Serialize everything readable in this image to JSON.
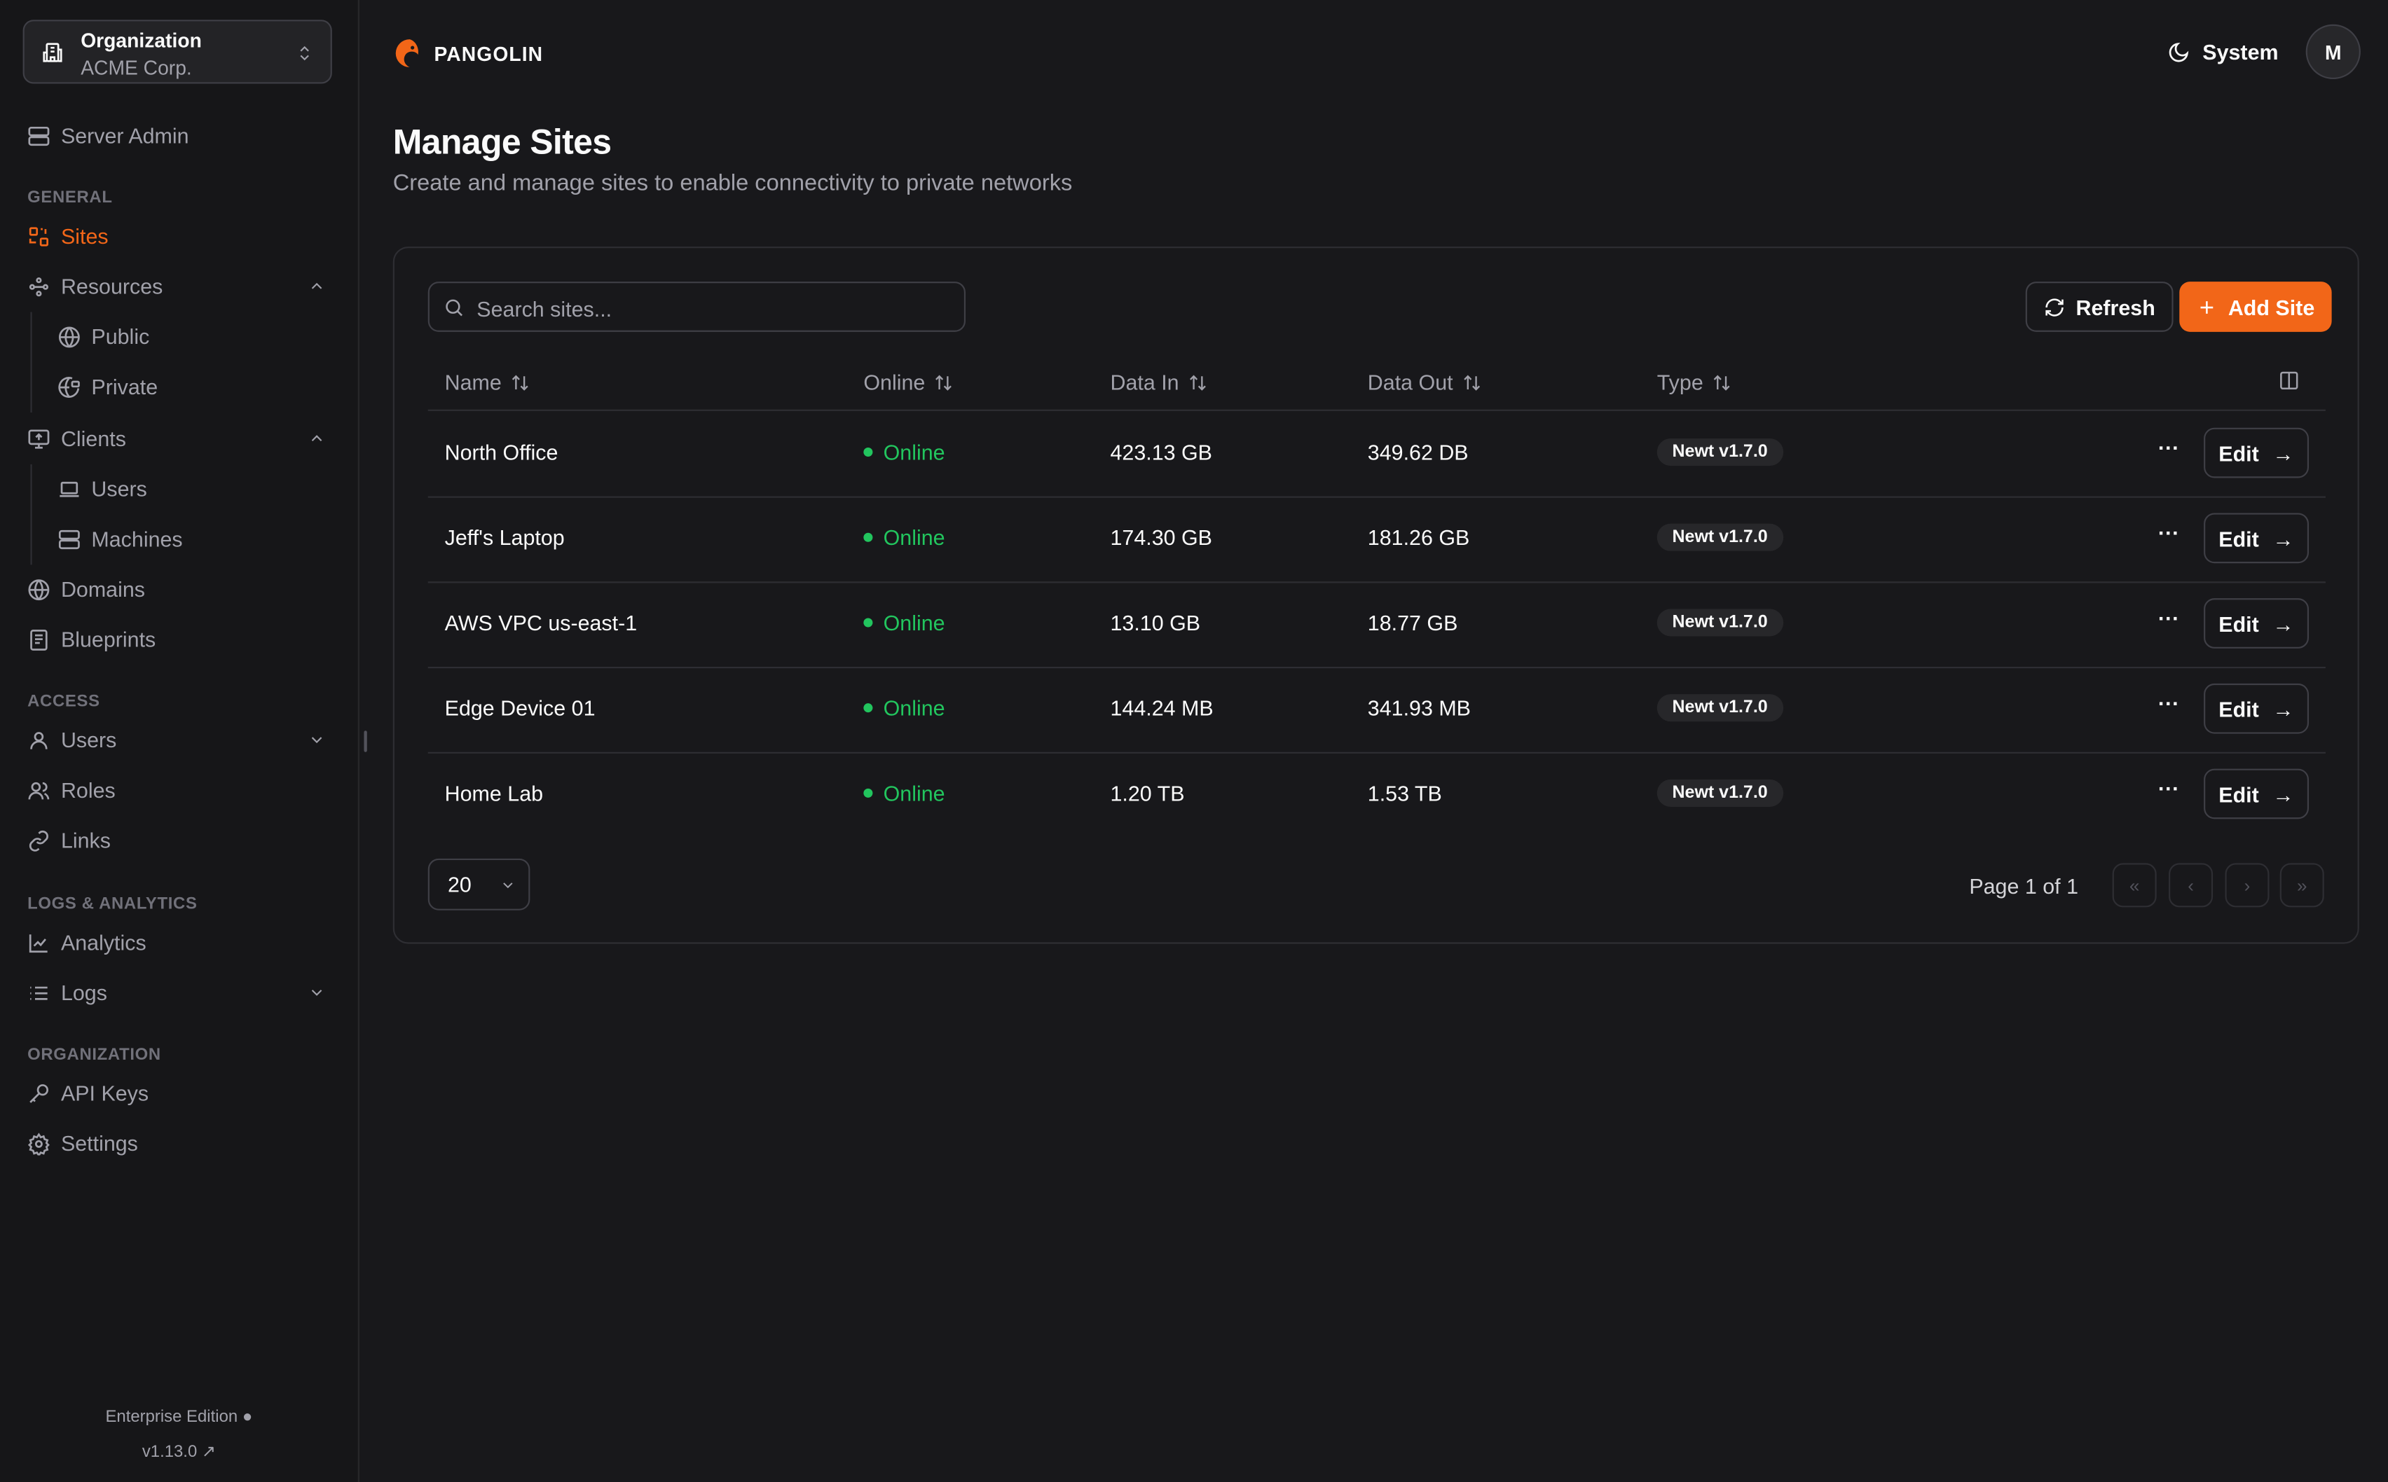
{
  "sidebar": {
    "org_label": "Organization",
    "org_name": "ACME Corp.",
    "server_admin": "Server Admin",
    "sections": {
      "general": "GENERAL",
      "access": "ACCESS",
      "logs": "LOGS & ANALYTICS",
      "organization": "ORGANIZATION"
    },
    "items": {
      "sites": "Sites",
      "resources": "Resources",
      "public": "Public",
      "private": "Private",
      "clients": "Clients",
      "users_client": "Users",
      "machines": "Machines",
      "domains": "Domains",
      "blueprints": "Blueprints",
      "users": "Users",
      "roles": "Roles",
      "links": "Links",
      "analytics": "Analytics",
      "logs": "Logs",
      "api_keys": "API Keys",
      "settings": "Settings"
    },
    "edition": "Enterprise Edition",
    "version": "v1.13.0"
  },
  "header": {
    "brand": "PANGOLIN",
    "theme": "System",
    "avatar": "M"
  },
  "page": {
    "title": "Manage Sites",
    "subtitle": "Create and manage sites to enable connectivity to private networks"
  },
  "toolbar": {
    "search_placeholder": "Search sites...",
    "refresh": "Refresh",
    "add": "Add Site"
  },
  "table": {
    "columns": [
      "Name",
      "Online",
      "Data In",
      "Data Out",
      "Type"
    ],
    "rows": [
      {
        "name": "North Office",
        "online": "Online",
        "data_in": "423.13 GB",
        "data_out": "349.62 DB",
        "type": "Newt v1.7.0"
      },
      {
        "name": "Jeff's Laptop",
        "online": "Online",
        "data_in": "174.30 GB",
        "data_out": "181.26 GB",
        "type": "Newt v1.7.0"
      },
      {
        "name": "AWS VPC us-east-1",
        "online": "Online",
        "data_in": "13.10 GB",
        "data_out": "18.77 GB",
        "type": "Newt v1.7.0"
      },
      {
        "name": "Edge Device 01",
        "online": "Online",
        "data_in": "144.24 MB",
        "data_out": "341.93 MB",
        "type": "Newt v1.7.0"
      },
      {
        "name": "Home Lab",
        "online": "Online",
        "data_in": "1.20 TB",
        "data_out": "1.53 TB",
        "type": "Newt v1.7.0"
      }
    ],
    "edit_label": "Edit"
  },
  "pagination": {
    "page_size": "20",
    "page_text": "Page 1 of 1"
  },
  "colors": {
    "accent": "#f26618",
    "online": "#22c55e",
    "background": "#18181b"
  }
}
